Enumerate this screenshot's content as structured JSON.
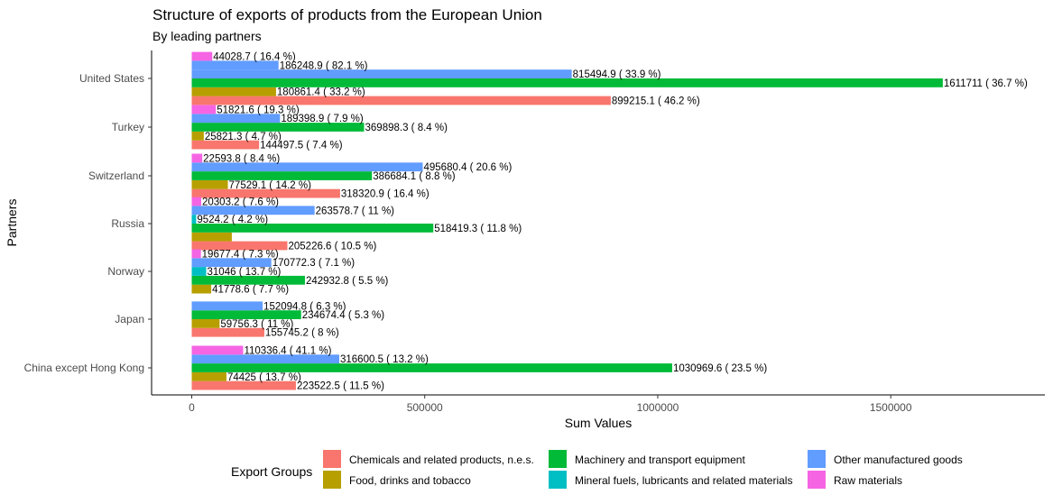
{
  "chart_data": {
    "type": "bar",
    "orientation": "horizontal",
    "title": "Structure of exports of products from the European Union",
    "subtitle": "By leading partners",
    "xlabel": "Sum Values",
    "ylabel": "Partners",
    "xlim": [
      0,
      1750000
    ],
    "x_ticks": [
      0,
      500000,
      1000000,
      1500000
    ],
    "x_tick_labels": [
      "0",
      "500000",
      "1000000",
      "1500000"
    ],
    "grid": false,
    "legend": {
      "title": "Export Groups",
      "position": "bottom"
    },
    "categories": [
      "United States",
      "Turkey",
      "Switzerland",
      "Russia",
      "Norway",
      "Japan",
      "China except Hong Kong"
    ],
    "series": [
      {
        "name": "Chemicals and related products, n.e.s.",
        "color": "#F8766D",
        "values": [
          899215.1,
          144497.5,
          318320.9,
          205226.6,
          null,
          155745.2,
          223522.5
        ],
        "labels": [
          "899215.1 ( 46.2 %)",
          "144497.5 ( 7.4 %)",
          "318320.9 ( 16.4 %)",
          "205226.6 ( 10.5 %)",
          "",
          "155745.2 ( 8 %)",
          "223522.5 ( 11.5 %)"
        ]
      },
      {
        "name": "Food, drinks and tobacco",
        "color": "#B79F00",
        "values": [
          180861.4,
          25821.3,
          77529.1,
          86000,
          41778.6,
          59756.3,
          74425
        ],
        "labels": [
          "180861.4 ( 33.2 %)",
          "25821.3 ( 4.7 %)",
          "77529.1 ( 14.2 %)",
          "",
          "41778.6 ( 7.7 %)",
          "59756.3 ( 11 %)",
          "74425 ( 13.7 %)"
        ]
      },
      {
        "name": "Machinery and transport equipment",
        "color": "#00BA38",
        "values": [
          1611711,
          369898.3,
          386684.1,
          518419.3,
          242932.8,
          234674.4,
          1030969.6
        ],
        "labels": [
          "1611711 ( 36.7 %)",
          "369898.3 ( 8.4 %)",
          "386684.1 ( 8.8 %)",
          "518419.3 ( 11.8 %)",
          "242932.8 ( 5.5 %)",
          "234674.4 ( 5.3 %)",
          "1030969.6 ( 23.5 %)"
        ]
      },
      {
        "name": "Mineral fuels, lubricants and related materials",
        "color": "#00BFC4",
        "values": [
          null,
          null,
          null,
          9524.2,
          31046,
          null,
          null
        ],
        "labels": [
          "",
          "",
          "",
          "9524.2 ( 4.2 %)",
          "31046 ( 13.7 %)",
          "",
          ""
        ]
      },
      {
        "name": "Other manufactured goods",
        "color": "#619CFF",
        "values": [
          815494.9,
          189398.9,
          495680.4,
          263578.7,
          170772.3,
          152094.8,
          316600.5
        ],
        "labels": [
          "815494.9 ( 33.9 %)",
          "189398.9 ( 7.9 %)",
          "495680.4 ( 20.6 %)",
          "263578.7 ( 11 %)",
          "170772.3 ( 7.1 %)",
          "152094.8 ( 6.3 %)",
          "316600.5 ( 13.2 %)"
        ]
      },
      {
        "name": "Other manufactured goods (second bar)",
        "color": "#619CFF",
        "values": [
          186248.9,
          null,
          null,
          null,
          null,
          null,
          null
        ],
        "labels": [
          "186248.9 ( 82.1 %)",
          "",
          "",
          "",
          "",
          "",
          ""
        ]
      },
      {
        "name": "Raw materials",
        "color": "#F564E3",
        "values": [
          44028.7,
          51821.6,
          22593.8,
          20303.2,
          19677.4,
          null,
          110336.4
        ],
        "labels": [
          "44028.7 ( 16.4 %)",
          "51821.6 ( 19.3 %)",
          "22593.8 ( 8.4 %)",
          "20303.2 ( 7.6 %)",
          "19677.4 ( 7.3 %)",
          "",
          "110336.4 ( 41.1 %)"
        ]
      }
    ]
  }
}
